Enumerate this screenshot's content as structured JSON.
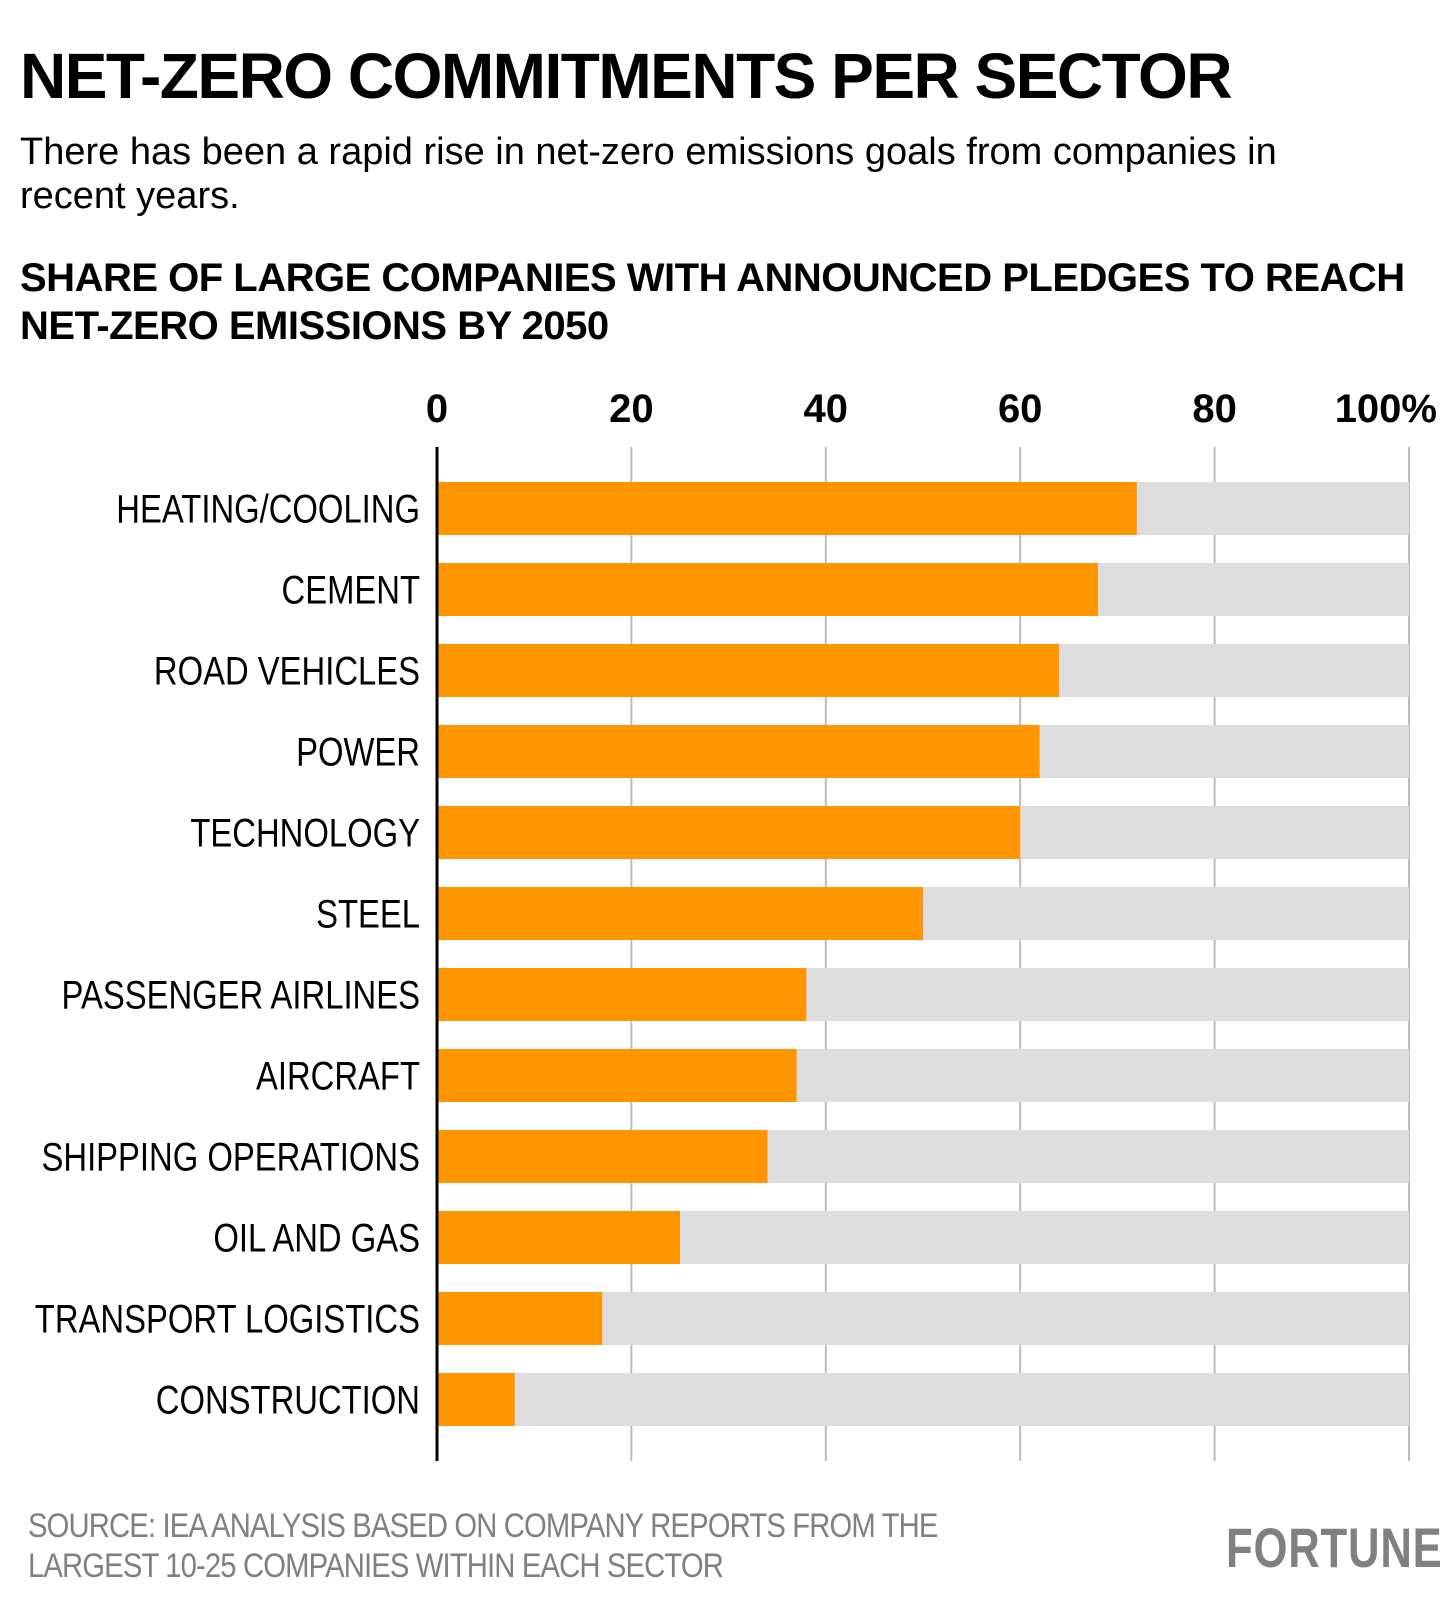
{
  "header": {
    "title": "NET-ZERO COMMITMENTS PER SECTOR",
    "subtitle": "There has been a rapid rise in net-zero emissions goals from companies in recent years."
  },
  "footer": {
    "source": "SOURCE: IEA ANALYSIS BASED ON COMPANY REPORTS FROM THE LARGEST 10-25 COMPANIES WITHIN EACH SECTOR",
    "brand": "FORTUNE"
  },
  "colors": {
    "bar": "#FF9500",
    "track": "#DDDDDD",
    "grid": "#BBBBBB",
    "axis": "#000000",
    "muted_text": "#808080"
  },
  "chart_data": {
    "type": "bar",
    "orientation": "horizontal",
    "title": "SHARE OF LARGE COMPANIES WITH ANNOUNCED PLEDGES TO REACH NET-ZERO EMISSIONS BY 2050",
    "xlabel": "",
    "ylabel": "",
    "xlim": [
      0,
      100
    ],
    "x_ticks": [
      0,
      20,
      40,
      60,
      80,
      100
    ],
    "x_tick_labels": [
      "0",
      "20",
      "40",
      "60",
      "80",
      "100%"
    ],
    "x_axis_position": "top",
    "grid": true,
    "background_track": 100,
    "categories": [
      "HEATING/COOLING",
      "CEMENT",
      "ROAD VEHICLES",
      "POWER",
      "TECHNOLOGY",
      "STEEL",
      "PASSENGER AIRLINES",
      "AIRCRAFT",
      "SHIPPING OPERATIONS",
      "OIL AND GAS",
      "TRANSPORT LOGISTICS",
      "CONSTRUCTION"
    ],
    "values": [
      72,
      68,
      64,
      62,
      60,
      50,
      38,
      37,
      34,
      25,
      17,
      8
    ],
    "unit": "%"
  }
}
